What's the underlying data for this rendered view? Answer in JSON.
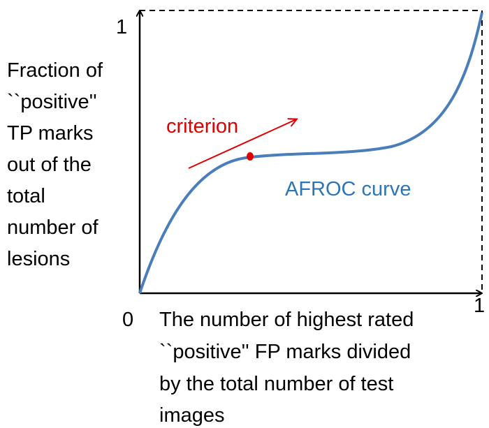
{
  "y_axis": {
    "max_label": "1",
    "title_lines": [
      "Fraction of",
      "``positive''",
      "TP marks",
      "out of the",
      "total",
      "number of",
      "lesions"
    ]
  },
  "x_axis": {
    "min_label": "0",
    "max_label": "1",
    "title_lines": [
      "The number of highest rated",
      "``positive'' FP marks divided",
      "by the total number of test",
      "images"
    ]
  },
  "annotations": {
    "criterion": "criterion",
    "curve": "AFROC curve"
  }
}
